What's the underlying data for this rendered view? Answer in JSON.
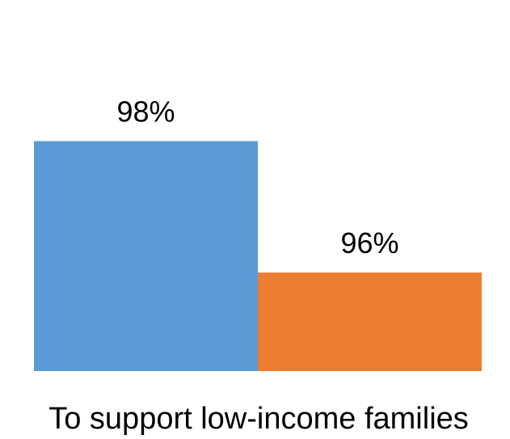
{
  "chart_data": {
    "type": "bar",
    "categories": [
      "To support low-income families"
    ],
    "series": [
      {
        "values": [
          98
        ],
        "color": "#5B9BD5"
      },
      {
        "values": [
          96
        ],
        "color": "#ED7D31"
      }
    ],
    "value_suffix": "%",
    "ylim": [
      94.5,
      100
    ],
    "grid": false,
    "legend": "none"
  }
}
